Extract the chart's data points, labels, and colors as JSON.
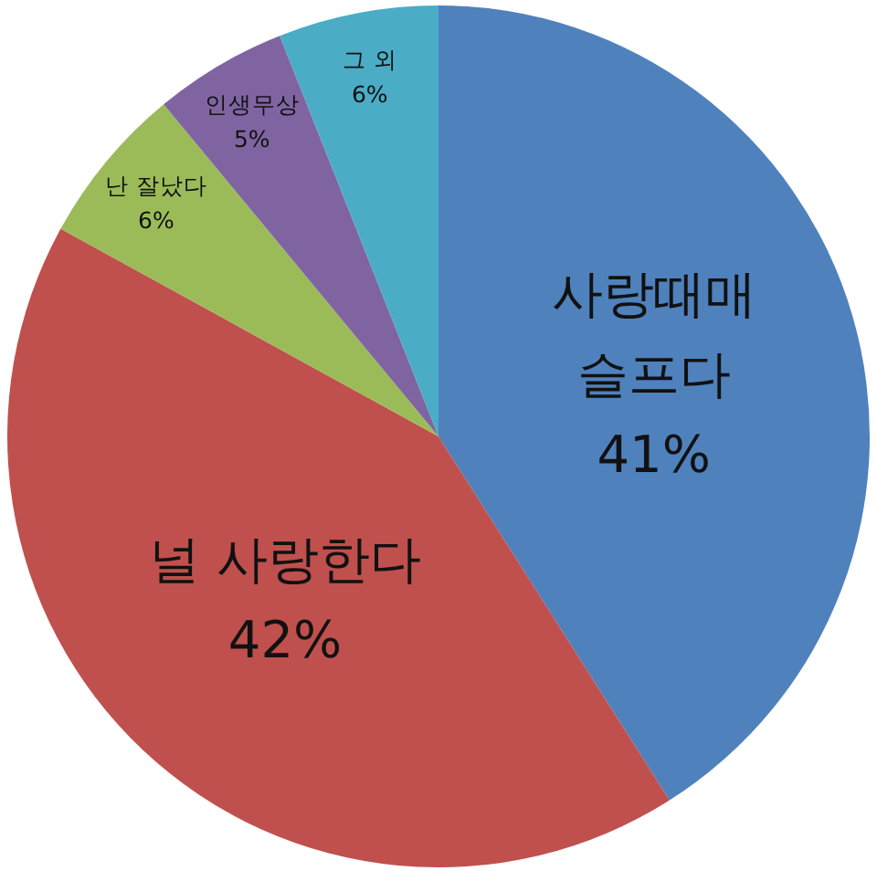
{
  "chart_data": {
    "type": "pie",
    "categories": [
      "사랑때매 슬프다",
      "널 사랑한다",
      "난 잘났다",
      "인생무상",
      "그 외"
    ],
    "values": [
      41,
      42,
      6,
      5,
      6
    ],
    "colors": [
      "#4f81bd",
      "#c0504d",
      "#9bbb59",
      "#8064a2",
      "#4bacc6"
    ],
    "value_labels": [
      "41%",
      "42%",
      "6%",
      "5%",
      "6%"
    ]
  }
}
